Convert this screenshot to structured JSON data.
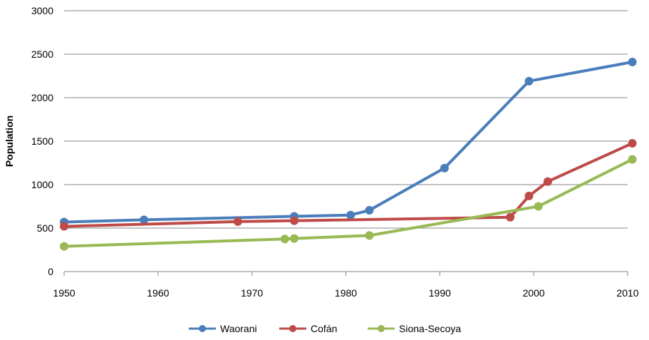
{
  "chart_data": {
    "type": "line",
    "title": "",
    "xlabel": "",
    "ylabel": "Population",
    "xlim": [
      1950,
      2010
    ],
    "ylim": [
      0,
      3000
    ],
    "x_ticks": [
      1950,
      1960,
      1970,
      1980,
      1990,
      2000,
      2010
    ],
    "y_ticks": [
      0,
      500,
      1000,
      1500,
      2000,
      2500,
      3000
    ],
    "grid": "horizontal",
    "legend_position": "bottom",
    "series": [
      {
        "name": "Waorani",
        "color": "#4a7ebb",
        "points": [
          [
            1950,
            570
          ],
          [
            1958.5,
            595
          ],
          [
            1974.5,
            635
          ],
          [
            1980.5,
            650
          ],
          [
            1982.5,
            705
          ],
          [
            1990.5,
            1190
          ],
          [
            1999.5,
            2190
          ],
          [
            2010.5,
            2410
          ]
        ]
      },
      {
        "name": "Cofán",
        "color": "#be4b48",
        "points": [
          [
            1950,
            520
          ],
          [
            1968.5,
            575
          ],
          [
            1974.5,
            585
          ],
          [
            1997.5,
            625
          ],
          [
            1999.5,
            870
          ],
          [
            2001.5,
            1035
          ],
          [
            2010.5,
            1475
          ]
        ]
      },
      {
        "name": "Siona-Secoya",
        "color": "#98b954",
        "points": [
          [
            1950,
            290
          ],
          [
            1973.5,
            375
          ],
          [
            1974.5,
            380
          ],
          [
            1982.5,
            415
          ],
          [
            2000.5,
            750
          ],
          [
            2010.5,
            1290
          ]
        ]
      }
    ]
  }
}
